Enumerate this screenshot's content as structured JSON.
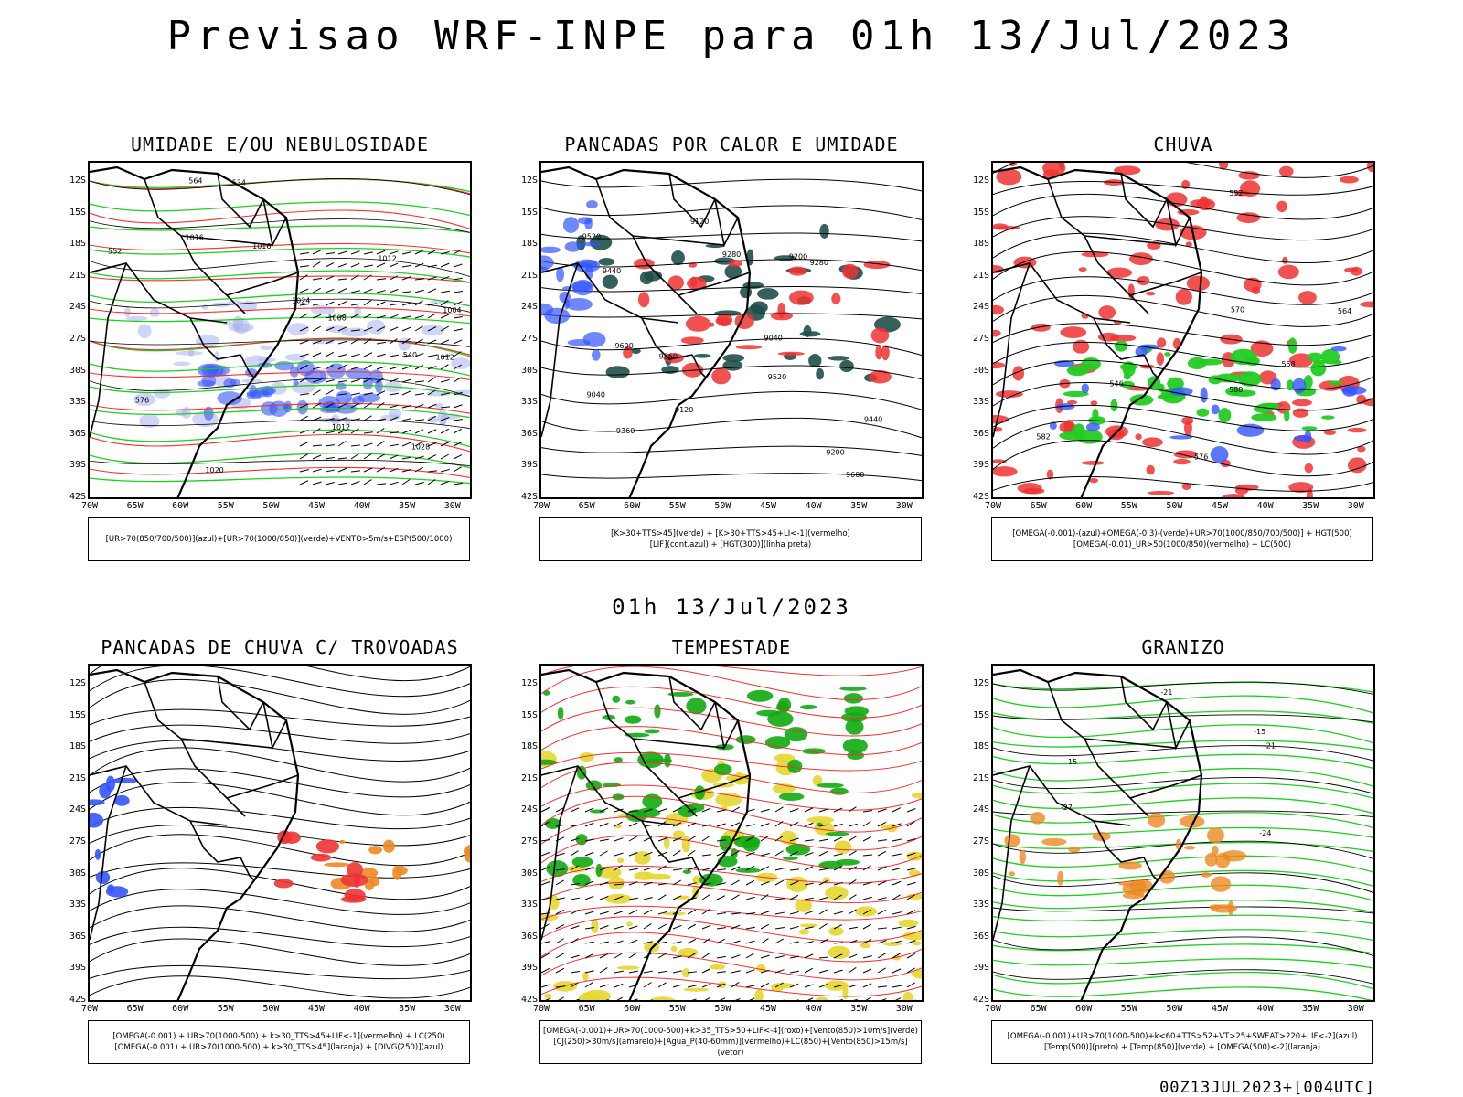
{
  "header": {
    "title": "Previsao WRF-INPE  para 01h 13/Jul/2023"
  },
  "mid_title": "01h 13/Jul/2023",
  "footer": "00Z13JUL2023+[004UTC]",
  "axes": {
    "lat_labels": [
      "12S",
      "15S",
      "18S",
      "21S",
      "24S",
      "27S",
      "30S",
      "33S",
      "36S",
      "39S",
      "42S"
    ],
    "lon_labels": [
      "70W",
      "65W",
      "60W",
      "55W",
      "50W",
      "45W",
      "40W",
      "35W",
      "30W"
    ]
  },
  "panels": [
    {
      "title": "UMIDADE E/OU NEBULOSIDADE",
      "legend": [
        "[UR>70(850/700/500)](azul)+[UR>70(1000/850)](verde)+VENTO>5m/s+ESP(500/1000)"
      ],
      "contour_labels": [
        "1012",
        "1012",
        "1012",
        "1016",
        "1016",
        "1020",
        "1024",
        "1028",
        "1004",
        "1008",
        "552",
        "564",
        "576",
        "540",
        "534"
      ]
    },
    {
      "title": "PANCADAS POR CALOR E UMIDADE",
      "legend": [
        "[K>30+TTS>45](verde) + [K>30+TTS>45+LI<-1](vermelho)",
        "[LIF](cont.azul) + [HGT(300)](linha preta)"
      ],
      "contour_labels": [
        "9600",
        "9600",
        "9520",
        "9520",
        "9440",
        "9440",
        "9360",
        "9360",
        "9280",
        "9280",
        "9200",
        "9200",
        "9120",
        "9120",
        "9040",
        "9040"
      ]
    },
    {
      "title": "CHUVA",
      "legend": [
        "[OMEGA(-0.001)-(azul)+OMEGA(-0.3)-(verde)+UR>70(1000/850/700/500)] + HGT(500)",
        "[OMEGA(-0.01)_UR>50(1000/850)(vermelho) + LC(500)"
      ],
      "contour_labels": [
        "588",
        "582",
        "576",
        "570",
        "564",
        "558",
        "552",
        "546"
      ]
    },
    {
      "title": "PANCADAS DE CHUVA C/ TROVOADAS",
      "legend": [
        "[OMEGA(-0.001) + UR>70(1000-500) + k>30_TTS>45+LIF<-1](vermelho) + LC(250)",
        "[OMEGA(-0.001) + UR>70(1000-500) + k>30_TTS>45](laranja) + [DIVG(250)](azul)"
      ],
      "contour_labels": []
    },
    {
      "title": "TEMPESTADE",
      "legend": [
        "[OMEGA(-0.001)+UR>70(1000-500)+k>35_TTS>50+LIF<-4](roxo)+[Vento(850)>10m/s](verde)",
        "[CJ(250)>30m/s](amarelo)+[Agua_P(40-60mm)](vermelho)+LC(850)+[Vento(850)>15m/s](vetor)"
      ],
      "contour_labels": []
    },
    {
      "title": "GRANIZO",
      "legend": [
        "[OMEGA(-0.001)+UR>70(1000-500)+k<60+TTS>52+VT>25+SWEAT>220+LIF<-2](azul)",
        "[Temp(500)](preto) + [Temp(850)](verde) + [OMEGA(500)<-2](laranja)"
      ],
      "contour_labels": [
        "-15",
        "-21",
        "-21",
        "-15",
        "-24",
        "-27"
      ]
    }
  ],
  "colors": {
    "blue": "#3355ff",
    "green": "#22cc22",
    "red": "#ee3333",
    "orange": "#ee8822",
    "yellow": "#e6d630",
    "darkteal": "#1f4f4a"
  }
}
